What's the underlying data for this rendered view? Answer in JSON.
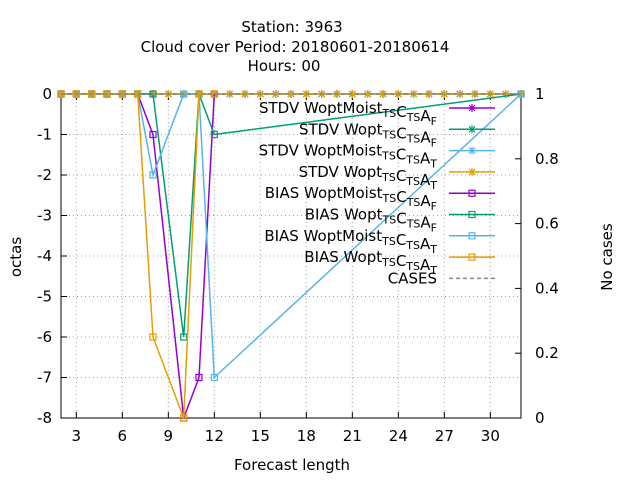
{
  "title_lines": [
    "Station:     3963",
    "Cloud cover   Period: 20180601-20180614",
    "Hours:  00"
  ],
  "chart_data": {
    "type": "line",
    "xlabel": "Forecast length",
    "ylabel": "octas",
    "y2label": "No cases",
    "xlim": [
      2,
      32
    ],
    "ylim": [
      -8,
      0
    ],
    "y2lim": [
      0,
      1
    ],
    "xticks": [
      3,
      6,
      9,
      12,
      15,
      18,
      21,
      24,
      27,
      30
    ],
    "yticks": [
      0,
      -1,
      -2,
      -3,
      -4,
      -5,
      -6,
      -7,
      -8
    ],
    "y2ticks": [
      0,
      0.2,
      0.4,
      0.6,
      0.8,
      1
    ],
    "grid": "dashed",
    "legend_position": "top-right",
    "series": [
      {
        "legend": [
          [
            "STDV WoptMoist",
            "TS"
          ],
          [
            "C",
            "TS"
          ],
          [
            "A",
            "F"
          ]
        ],
        "color": "#9400d3",
        "marker": "x",
        "axis": "y1",
        "x": [
          2,
          3,
          4,
          5,
          6,
          7,
          8,
          9,
          10,
          11,
          12,
          13,
          14,
          15,
          16,
          17,
          18,
          19,
          20,
          21,
          22,
          23,
          24,
          25,
          26,
          27,
          28,
          29,
          30,
          31,
          32
        ],
        "y": [
          0,
          0,
          0,
          0,
          0,
          0,
          0,
          0,
          0,
          0,
          0,
          0,
          0,
          0,
          0,
          0,
          0,
          0,
          0,
          0,
          0,
          0,
          0,
          0,
          0,
          0,
          0,
          0,
          0,
          0,
          0
        ]
      },
      {
        "legend": [
          [
            "STDV Wopt",
            "TS"
          ],
          [
            "C",
            "TS"
          ],
          [
            "A",
            "F"
          ]
        ],
        "color": "#009e73",
        "marker": "x",
        "axis": "y1",
        "x": [
          2,
          3,
          4,
          5,
          6,
          7,
          8,
          9,
          10,
          11,
          12,
          13,
          14,
          15,
          16,
          17,
          18,
          19,
          20,
          21,
          22,
          23,
          24,
          25,
          26,
          27,
          28,
          29,
          30,
          31,
          32
        ],
        "y": [
          0,
          0,
          0,
          0,
          0,
          0,
          0,
          0,
          0,
          0,
          0,
          0,
          0,
          0,
          0,
          0,
          0,
          0,
          0,
          0,
          0,
          0,
          0,
          0,
          0,
          0,
          0,
          0,
          0,
          0,
          0
        ]
      },
      {
        "legend": [
          [
            "STDV WoptMoist",
            "TS"
          ],
          [
            "C",
            "TS"
          ],
          [
            "A",
            "T"
          ]
        ],
        "color": "#56b4e9",
        "marker": "x",
        "axis": "y1",
        "x": [
          2,
          3,
          4,
          5,
          6,
          7,
          8,
          9,
          10,
          11,
          12,
          13,
          14,
          15,
          16,
          17,
          18,
          19,
          20,
          21,
          22,
          23,
          24,
          25,
          26,
          27,
          28,
          29,
          30,
          31,
          32
        ],
        "y": [
          0,
          0,
          0,
          0,
          0,
          0,
          0,
          0,
          0,
          0,
          0,
          0,
          0,
          0,
          0,
          0,
          0,
          0,
          0,
          0,
          0,
          0,
          0,
          0,
          0,
          0,
          0,
          0,
          0,
          0,
          0
        ]
      },
      {
        "legend": [
          [
            "STDV Wopt",
            "TS"
          ],
          [
            "C",
            "TS"
          ],
          [
            "A",
            "T"
          ]
        ],
        "color": "#e69f00",
        "marker": "x",
        "axis": "y1",
        "x": [
          2,
          3,
          4,
          5,
          6,
          7,
          8,
          9,
          10,
          11,
          12,
          13,
          14,
          15,
          16,
          17,
          18,
          19,
          20,
          21,
          22,
          23,
          24,
          25,
          26,
          27,
          28,
          29,
          30,
          31,
          32
        ],
        "y": [
          0,
          0,
          0,
          0,
          0,
          0,
          0,
          0,
          0,
          0,
          0,
          0,
          0,
          0,
          0,
          0,
          0,
          0,
          0,
          0,
          0,
          0,
          0,
          0,
          0,
          0,
          0,
          0,
          0,
          0,
          0
        ]
      },
      {
        "legend": [
          [
            "BIAS WoptMoist",
            "TS"
          ],
          [
            "C",
            "TS"
          ],
          [
            "A",
            "F"
          ]
        ],
        "color": "#9400d3",
        "marker": "square",
        "axis": "y1",
        "x": [
          2,
          3,
          4,
          5,
          6,
          7,
          8,
          10,
          11,
          12
        ],
        "y": [
          0,
          0,
          0,
          0,
          0,
          0,
          -1,
          -8,
          -7,
          0
        ]
      },
      {
        "legend": [
          [
            "BIAS Wopt",
            "TS"
          ],
          [
            "C",
            "TS"
          ],
          [
            "A",
            "F"
          ]
        ],
        "color": "#009e73",
        "marker": "square",
        "axis": "y1",
        "x": [
          2,
          3,
          4,
          5,
          6,
          7,
          8,
          10,
          11,
          12,
          32
        ],
        "y": [
          0,
          0,
          0,
          0,
          0,
          0,
          0,
          -6,
          0,
          -1,
          0
        ]
      },
      {
        "legend": [
          [
            "BIAS WoptMoist",
            "TS"
          ],
          [
            "C",
            "TS"
          ],
          [
            "A",
            "T"
          ]
        ],
        "color": "#56b4e9",
        "marker": "square",
        "axis": "y1",
        "x": [
          2,
          3,
          4,
          5,
          6,
          7,
          8,
          10,
          11,
          12,
          32
        ],
        "y": [
          0,
          0,
          0,
          0,
          0,
          0,
          -2,
          0,
          0,
          -7,
          0
        ]
      },
      {
        "legend": [
          [
            "BIAS Wopt",
            "TS"
          ],
          [
            "C",
            "TS"
          ],
          [
            "A",
            "T"
          ]
        ],
        "color": "#e69f00",
        "marker": "square",
        "axis": "y1",
        "x": [
          2,
          3,
          4,
          5,
          6,
          7,
          8,
          10,
          11,
          12
        ],
        "y": [
          0,
          0,
          0,
          0,
          0,
          0,
          -6,
          -8,
          0,
          0
        ]
      },
      {
        "legend": [
          [
            "CASES",
            "",
            ""
          ]
        ],
        "color": "#888888",
        "marker": "none",
        "dash": true,
        "axis": "y2",
        "x": [
          2,
          32
        ],
        "y": [
          1,
          1
        ]
      }
    ]
  }
}
